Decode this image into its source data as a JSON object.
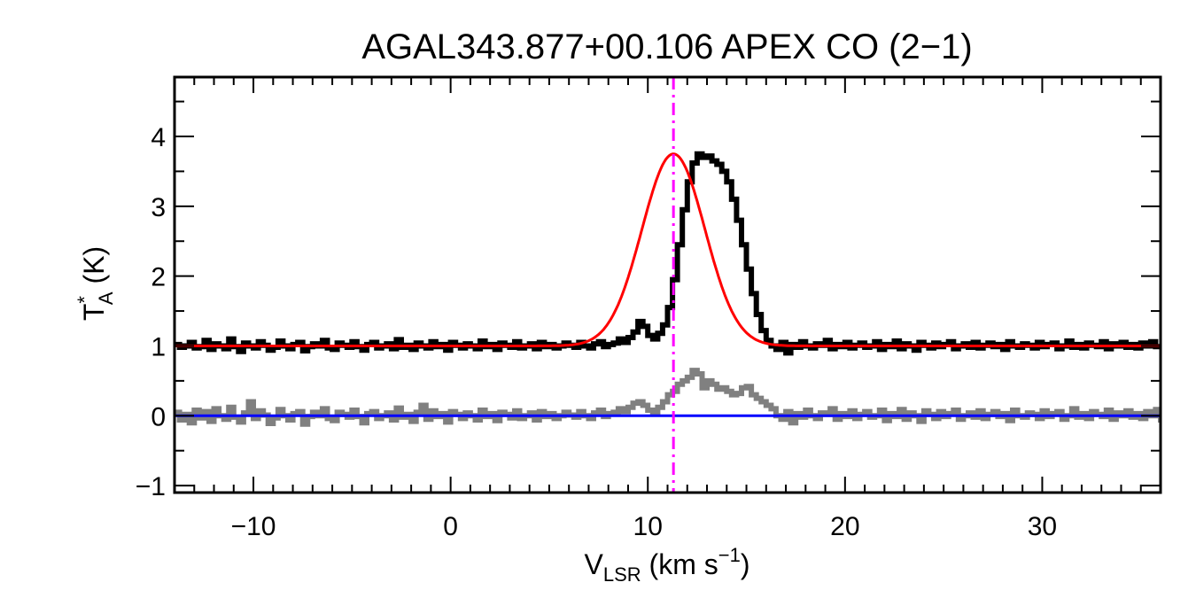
{
  "chart_data": {
    "type": "line",
    "title": "AGAL343.877+00.106  APEX CO (2−1)",
    "xlabel": {
      "main": "V",
      "sub": "LSR",
      "rest": " (km s",
      "sup": "−1",
      "end": ")"
    },
    "ylabel": {
      "main": "T",
      "sup": "*",
      "sub": "A",
      "rest": " (K)"
    },
    "xlim": [
      -14,
      36
    ],
    "ylim": [
      -1.1,
      4.85
    ],
    "xticks": [
      -10,
      0,
      10,
      20,
      30
    ],
    "xtick_labels": [
      "−10",
      "0",
      "10",
      "20",
      "30"
    ],
    "yticks": [
      -1,
      0,
      1,
      2,
      3,
      4
    ],
    "ytick_labels": [
      "−1",
      "0",
      "1",
      "2",
      "3",
      "4"
    ],
    "x_minor_step": 1,
    "y_minor_step": 0.5,
    "grid": false,
    "reference_line": {
      "name": "V_LSR marker",
      "x": 11.3,
      "color": "#ff00ff",
      "style": "dash-dot"
    },
    "baseline": {
      "name": "zero level",
      "y": 0,
      "color": "#0000ff"
    },
    "gaussian_fit": {
      "name": "Gaussian fit",
      "offset": 1.0,
      "amplitude": 2.75,
      "center": 11.3,
      "sigma": 1.6,
      "color": "#ff0000"
    },
    "colors": {
      "spectrum": "#000000",
      "residual": "#808080",
      "fit": "#ff0000",
      "baseline": "#0000ff",
      "marker": "#ff00ff"
    },
    "series": [
      {
        "name": "spectrum",
        "x_start": -14.0,
        "x_step": 0.25,
        "values": [
          1.02,
          0.98,
          1.0,
          1.05,
          0.97,
          0.99,
          1.08,
          0.95,
          1.03,
          1.0,
          0.96,
          1.1,
          0.99,
          0.92,
          1.04,
          1.0,
          0.97,
          1.06,
          1.01,
          0.94,
          0.98,
          1.07,
          1.0,
          0.96,
          1.02,
          1.05,
          0.93,
          0.99,
          1.03,
          1.0,
          1.08,
          0.97,
          0.95,
          1.04,
          1.01,
          0.98,
          1.06,
          0.99,
          0.94,
          1.02,
          1.05,
          0.97,
          1.0,
          1.03,
          0.96,
          1.09,
          0.98,
          1.01,
          0.95,
          1.04,
          1.0,
          0.97,
          1.06,
          0.99,
          1.02,
          0.94,
          1.05,
          1.01,
          0.97,
          1.03,
          1.0,
          0.96,
          1.07,
          0.99,
          1.02,
          0.95,
          1.04,
          1.01,
          0.98,
          1.06,
          0.97,
          1.0,
          1.03,
          0.96,
          1.05,
          0.99,
          1.02,
          0.97,
          1.0,
          1.04,
          1.01,
          0.98,
          1.05,
          1.0,
          0.97,
          1.03,
          1.06,
          0.99,
          1.02,
          1.04,
          1.1,
          1.05,
          1.12,
          1.2,
          1.35,
          1.28,
          1.15,
          1.1,
          1.18,
          1.3,
          1.55,
          1.95,
          2.45,
          2.95,
          3.35,
          3.62,
          3.75,
          3.7,
          3.72,
          3.65,
          3.6,
          3.5,
          3.35,
          3.1,
          2.8,
          2.45,
          2.1,
          1.75,
          1.45,
          1.22,
          1.08,
          1.0,
          0.95,
          1.05,
          0.9,
          1.02,
          0.98,
          1.06,
          1.0,
          0.97,
          1.03,
          1.01,
          1.08,
          0.96,
          1.02,
          0.99,
          1.05,
          0.97,
          1.01,
          1.04,
          0.98,
          1.0,
          1.06,
          0.95,
          1.02,
          0.99,
          1.07,
          0.96,
          1.03,
          1.0,
          0.94,
          1.05,
          1.01,
          0.97,
          1.04,
          0.99,
          1.02,
          1.06,
          0.96,
          1.0,
          1.03,
          0.98,
          1.05,
          0.97,
          1.01,
          1.04,
          0.99,
          1.02,
          0.95,
          1.06,
          1.0,
          0.98,
          1.03,
          1.01,
          0.97,
          1.05,
          0.99,
          1.02,
          1.04,
          0.96,
          1.0,
          1.07,
          0.98,
          1.02,
          0.97,
          1.04,
          1.01,
          0.99,
          1.06,
          0.96,
          1.03,
          1.0,
          1.05,
          0.98,
          1.02,
          0.97,
          1.04,
          1.0,
          1.06,
          0.99
        ]
      },
      {
        "name": "residual",
        "x_start": -14.0,
        "x_step": 0.25,
        "values": [
          0.05,
          -0.06,
          0.02,
          -0.1,
          0.08,
          -0.03,
          0.06,
          -0.08,
          0.1,
          0.0,
          -0.05,
          0.12,
          -0.02,
          -0.09,
          0.04,
          0.2,
          -0.04,
          0.07,
          0.01,
          -0.11,
          -0.03,
          0.09,
          0.0,
          -0.06,
          0.03,
          0.06,
          -0.12,
          -0.01,
          0.05,
          0.0,
          0.1,
          -0.04,
          -0.07,
          0.05,
          0.02,
          -0.02,
          0.08,
          -0.01,
          -0.1,
          0.03,
          0.06,
          -0.04,
          0.0,
          0.04,
          -0.06,
          0.11,
          -0.02,
          0.02,
          -0.08,
          0.05,
          0.15,
          -0.05,
          0.07,
          -0.01,
          0.03,
          -0.09,
          0.06,
          0.02,
          -0.04,
          0.04,
          0.0,
          -0.06,
          0.08,
          -0.01,
          0.03,
          -0.07,
          0.05,
          0.02,
          -0.03,
          0.07,
          -0.04,
          0.0,
          0.04,
          -0.06,
          0.06,
          -0.01,
          0.03,
          -0.04,
          0.0,
          0.05,
          0.01,
          -0.02,
          0.06,
          0.0,
          -0.04,
          0.04,
          0.08,
          -0.01,
          0.03,
          0.05,
          0.1,
          0.06,
          0.12,
          0.18,
          0.2,
          0.15,
          0.08,
          0.05,
          0.12,
          0.2,
          0.3,
          0.35,
          0.45,
          0.5,
          0.55,
          0.65,
          0.6,
          0.4,
          0.5,
          0.45,
          0.38,
          0.4,
          0.35,
          0.3,
          0.32,
          0.4,
          0.42,
          0.3,
          0.25,
          0.2,
          0.15,
          0.1,
          0.0,
          -0.05,
          0.06,
          -0.1,
          0.03,
          -0.02,
          0.08,
          0.0,
          -0.04,
          0.04,
          0.02,
          0.1,
          -0.05,
          0.03,
          -0.01,
          0.07,
          -0.04,
          0.02,
          0.06,
          -0.02,
          0.0,
          0.08,
          -0.07,
          0.03,
          -0.01,
          0.09,
          -0.05,
          0.04,
          0.0,
          -0.08,
          0.07,
          0.02,
          -0.04,
          0.06,
          -0.01,
          0.03,
          0.08,
          -0.05,
          0.0,
          0.04,
          -0.02,
          0.07,
          -0.04,
          0.02,
          0.06,
          -0.01,
          0.03,
          -0.07,
          0.08,
          0.0,
          -0.02,
          0.04,
          0.02,
          -0.04,
          0.07,
          -0.01,
          0.03,
          0.06,
          -0.05,
          0.0,
          0.1,
          -0.02,
          0.03,
          -0.04,
          0.06,
          0.02,
          -0.01,
          0.08,
          -0.05,
          0.04,
          0.0,
          0.07,
          -0.02,
          0.03,
          -0.04,
          0.06,
          0.0,
          0.09,
          -0.06
        ]
      }
    ]
  }
}
